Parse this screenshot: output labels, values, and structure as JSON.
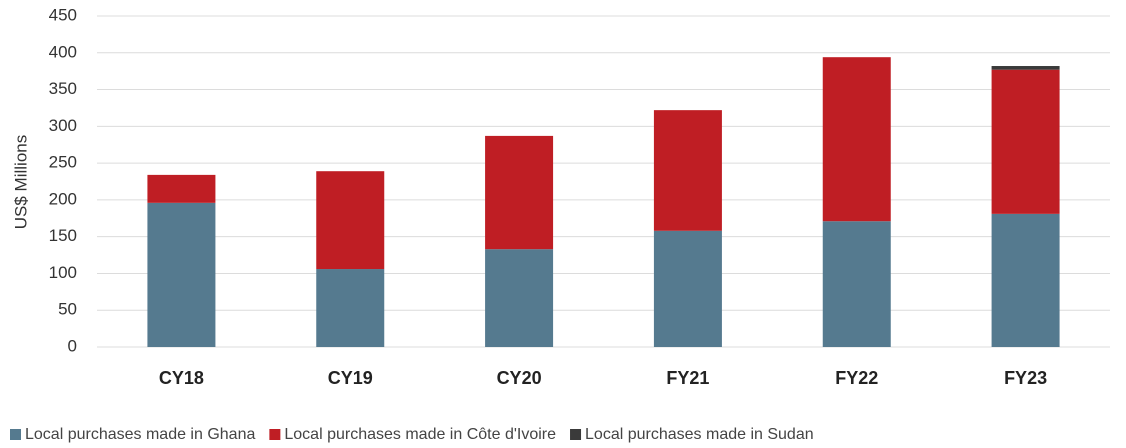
{
  "chart_data": {
    "type": "stacked_bar",
    "y_label": "US$ Millions",
    "categories": [
      "CY18",
      "CY19",
      "CY20",
      "FY21",
      "FY22",
      "FY23"
    ],
    "series": [
      {
        "name": "Local purchases made in Ghana",
        "color": "#557a8f",
        "values": [
          196,
          106,
          133,
          158,
          171,
          181
        ]
      },
      {
        "name": "Local purchases made in Côte d'Ivoire",
        "color": "#bf1e24",
        "values": [
          38,
          133,
          154,
          164,
          223,
          196
        ]
      },
      {
        "name": "Local purchases made in Sudan",
        "color": "#3a3a3a",
        "values": [
          null,
          null,
          null,
          null,
          null,
          5
        ]
      }
    ],
    "ylim": [
      0,
      450
    ],
    "yticks": [
      0,
      50,
      100,
      150,
      200,
      250,
      300,
      350,
      400,
      450
    ],
    "grid": true
  }
}
